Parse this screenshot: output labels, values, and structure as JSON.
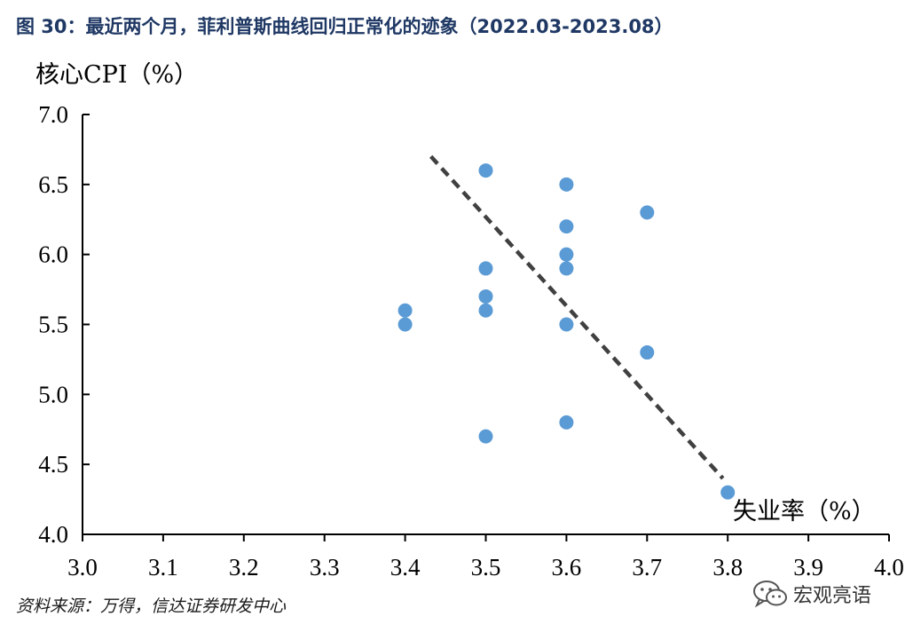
{
  "title": "图 30：最近两个月，菲利普斯曲线回归正常化的迹象（2022.03-2023.08）",
  "source": "资料来源：万得，信达证券研发中心",
  "watermark": {
    "text": "宏观亮语",
    "icon": "wechat-icon"
  },
  "colors": {
    "title": "#1f3864",
    "point": "#5b9bd5",
    "trend": "#404040"
  },
  "chart_data": {
    "type": "scatter",
    "xlabel": "失业率（%）",
    "ylabel": "核心CPI（%）",
    "xlim": [
      3.0,
      4.0
    ],
    "ylim": [
      4.0,
      7.0
    ],
    "xticks": [
      "3.0",
      "3.1",
      "3.2",
      "3.3",
      "3.4",
      "3.5",
      "3.6",
      "3.7",
      "3.8",
      "3.9",
      "4.0"
    ],
    "yticks": [
      "4.0",
      "4.5",
      "5.0",
      "5.5",
      "6.0",
      "6.5",
      "7.0"
    ],
    "grid": false,
    "series": [
      {
        "points": [
          {
            "x": 3.4,
            "y": 5.6
          },
          {
            "x": 3.4,
            "y": 5.5
          },
          {
            "x": 3.5,
            "y": 6.6
          },
          {
            "x": 3.5,
            "y": 5.9
          },
          {
            "x": 3.5,
            "y": 5.7
          },
          {
            "x": 3.5,
            "y": 5.6
          },
          {
            "x": 3.5,
            "y": 4.7
          },
          {
            "x": 3.6,
            "y": 6.5
          },
          {
            "x": 3.6,
            "y": 6.2
          },
          {
            "x": 3.6,
            "y": 6.0
          },
          {
            "x": 3.6,
            "y": 5.9
          },
          {
            "x": 3.6,
            "y": 5.5
          },
          {
            "x": 3.6,
            "y": 4.8
          },
          {
            "x": 3.7,
            "y": 6.3
          },
          {
            "x": 3.7,
            "y": 5.3
          },
          {
            "x": 3.8,
            "y": 4.3
          }
        ]
      }
    ],
    "trendline": {
      "style": "dashed",
      "from": {
        "x": 3.432,
        "y": 6.7
      },
      "to": {
        "x": 3.794,
        "y": 4.4
      }
    }
  }
}
